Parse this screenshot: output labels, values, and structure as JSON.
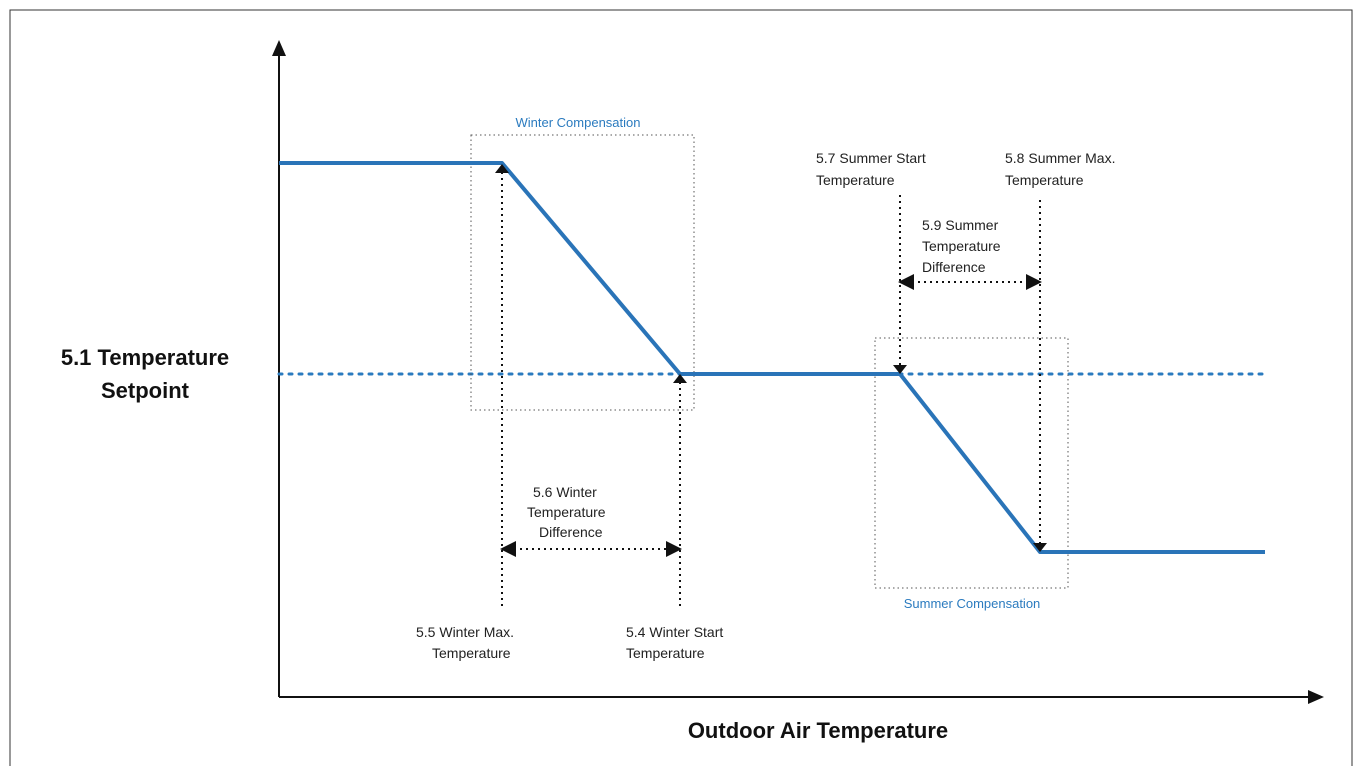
{
  "y_axis_label": [
    "5.1 Temperature",
    "Setpoint"
  ],
  "x_axis_label": "Outdoor Air Temperature",
  "winter_box_label": "Winter Compensation",
  "summer_box_label": "Summer Compensation",
  "labels": {
    "winter_difference": [
      "5.6 Winter",
      "Temperature",
      "Difference"
    ],
    "winter_max": [
      "5.5 Winter Max.",
      "Temperature"
    ],
    "winter_start": [
      "5.4 Winter Start",
      "Temperature"
    ],
    "summer_start": [
      "5.7 Summer Start",
      "Temperature"
    ],
    "summer_max": [
      "5.8 Summer Max.",
      "Temperature"
    ],
    "summer_difference": [
      "5.9 Summer",
      "Temperature",
      "Difference"
    ]
  }
}
